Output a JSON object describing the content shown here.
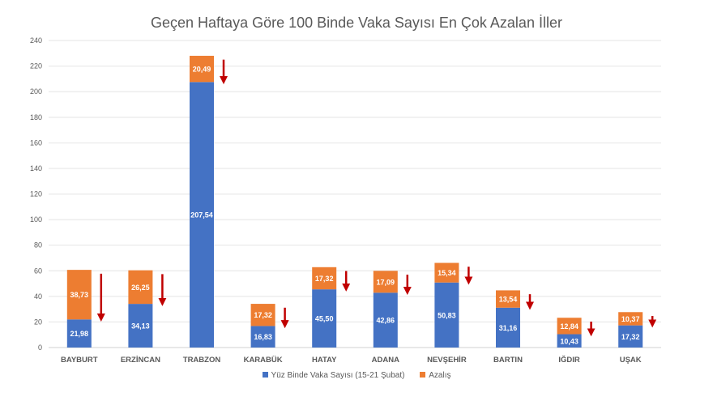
{
  "chart_data": {
    "type": "bar",
    "stacked": true,
    "title": "Geçen Haftaya Göre 100 Binde Vaka Sayısı En Çok Azalan İller",
    "categories": [
      "BAYBURT",
      "ERZİNCAN",
      "TRABZON",
      "KARABÜK",
      "HATAY",
      "ADANA",
      "NEVŞEHİR",
      "BARTIN",
      "IĞDIR",
      "UŞAK"
    ],
    "series": [
      {
        "name": "Yüz Binde Vaka Sayısı (15-21 Şubat)",
        "color": "#4472C4",
        "values": [
          21.98,
          34.13,
          207.54,
          16.83,
          45.5,
          42.86,
          50.83,
          31.16,
          10.43,
          17.32
        ],
        "labels": [
          "21,98",
          "34,13",
          "207,54",
          "16,83",
          "45,50",
          "42,86",
          "50,83",
          "31,16",
          "10,43",
          "17,32"
        ]
      },
      {
        "name": "Azalış",
        "color": "#ED7D31",
        "values": [
          38.73,
          26.25,
          20.49,
          17.32,
          17.32,
          17.09,
          15.34,
          13.54,
          12.84,
          10.37
        ],
        "labels": [
          "38,73",
          "26,25",
          "20,49",
          "17,32",
          "17,32",
          "17,09",
          "15,34",
          "13,54",
          "12,84",
          "10,37"
        ]
      }
    ],
    "ylim": [
      0,
      240
    ],
    "yticks": [
      0,
      20,
      40,
      60,
      80,
      100,
      120,
      140,
      160,
      180,
      200,
      220,
      240
    ],
    "grid": true,
    "legend": "bottom",
    "annotation": "red down arrow beside each bar",
    "arrow_color": "#C00000"
  }
}
